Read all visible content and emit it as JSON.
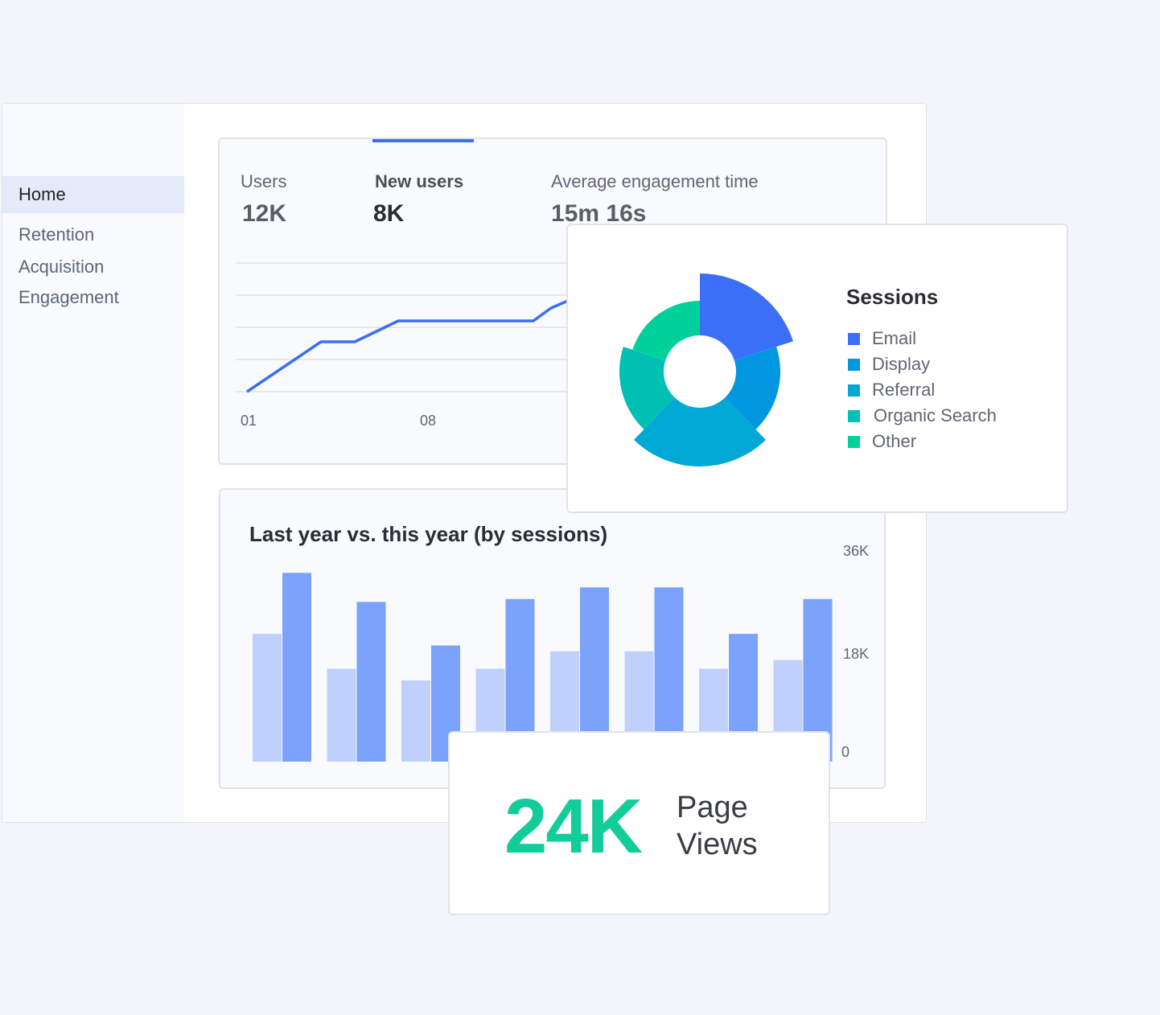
{
  "sidebar": {
    "items": [
      {
        "label": "Home",
        "active": true
      },
      {
        "label": "Retention",
        "active": false
      },
      {
        "label": "Acquisition",
        "active": false
      },
      {
        "label": "Engagement",
        "active": false
      }
    ]
  },
  "metrics": {
    "users": {
      "label": "Users",
      "value": "12K"
    },
    "new_users": {
      "label": "New users",
      "value": "8K"
    },
    "engagement": {
      "label": "Average engagement time",
      "value": "15m 16s"
    },
    "x_ticks": [
      "01",
      "08"
    ]
  },
  "line_chart": {
    "type": "line",
    "color": "#3b6ff0",
    "values": [
      0,
      1.55,
      1.55,
      2.2,
      2.2,
      2.2,
      2.2,
      2.6,
      2.9
    ]
  },
  "sessions": {
    "title": "Sessions",
    "legend": [
      {
        "label": "Email",
        "color": "#3b6ff5"
      },
      {
        "label": "Display",
        "color": "#0096e0"
      },
      {
        "label": "Referral",
        "color": "#00a8d6"
      },
      {
        "label": "Organic Search",
        "color": "#00bfb3"
      },
      {
        "label": "Other",
        "color": "#00d19b"
      }
    ]
  },
  "bar_chart": {
    "type": "bar",
    "title": "Last year vs. this year (by sessions)",
    "y_ticks": [
      "36K",
      "18K",
      "0"
    ],
    "ylim": [
      0,
      36000
    ],
    "colors": {
      "last_year": "#c0d0fc",
      "this_year": "#7ca3fc"
    },
    "series": [
      {
        "values": [
          22000,
          16000,
          14000,
          16000,
          19000,
          19000,
          16000,
          17500
        ]
      },
      {
        "values": [
          32500,
          27500,
          20000,
          28000,
          30000,
          30000,
          22000,
          28000
        ]
      }
    ]
  },
  "page_views": {
    "value": "24K",
    "label_line1": "Page",
    "label_line2": "Views"
  }
}
